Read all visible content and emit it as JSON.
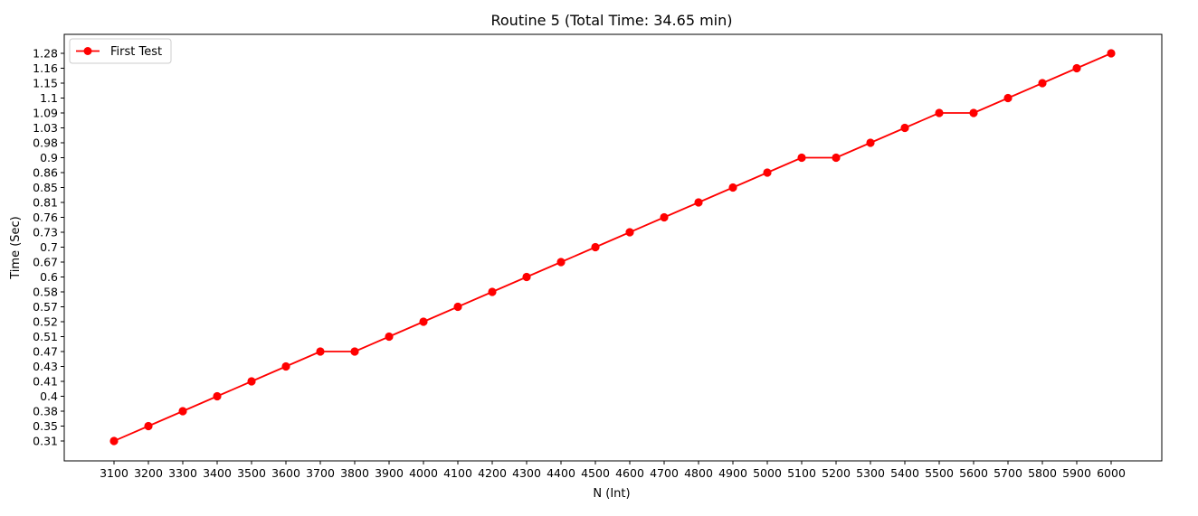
{
  "chart_data": {
    "type": "line",
    "title": "Routine 5 (Total Time: 34.65 min)",
    "xlabel": "N (Int)",
    "ylabel": "Time (Sec)",
    "x": [
      3100,
      3200,
      3300,
      3400,
      3500,
      3600,
      3700,
      3800,
      3900,
      4000,
      4100,
      4200,
      4300,
      4400,
      4500,
      4600,
      4700,
      4800,
      4900,
      5000,
      5100,
      5200,
      5300,
      5400,
      5500,
      5600,
      5700,
      5800,
      5900,
      6000
    ],
    "x_tick_labels": [
      "3100",
      "3200",
      "3300",
      "3400",
      "3500",
      "3600",
      "3700",
      "3800",
      "3900",
      "4000",
      "4100",
      "4200",
      "4300",
      "4400",
      "4500",
      "4600",
      "4700",
      "4800",
      "4900",
      "5000",
      "5100",
      "5200",
      "5300",
      "5400",
      "5500",
      "5600",
      "5700",
      "5800",
      "5900",
      "6000"
    ],
    "y_tick_labels": [
      "0.31",
      "0.35",
      "0.38",
      "0.4",
      "0.41",
      "0.43",
      "0.47",
      "0.51",
      "0.52",
      "0.57",
      "0.58",
      "0.6",
      "0.67",
      "0.7",
      "0.73",
      "0.76",
      "0.81",
      "0.85",
      "0.86",
      "0.9",
      "0.98",
      "1.03",
      "1.09",
      "1.1",
      "1.15",
      "1.16",
      "1.28"
    ],
    "y_axis_note": "categorical",
    "series": [
      {
        "name": "First Test",
        "color": "#ff0000",
        "marker": "circle",
        "values": [
          "0.31",
          "0.35",
          "0.38",
          "0.4",
          "0.41",
          "0.43",
          "0.47",
          "0.47",
          "0.51",
          "0.52",
          "0.57",
          "0.58",
          "0.6",
          "0.67",
          "0.7",
          "0.73",
          "0.76",
          "0.81",
          "0.85",
          "0.86",
          "0.9",
          "0.9",
          "0.98",
          "1.03",
          "1.09",
          "1.09",
          "1.1",
          "1.15",
          "1.16",
          "1.28"
        ]
      }
    ],
    "legend_position": "top-left",
    "grid": false
  }
}
